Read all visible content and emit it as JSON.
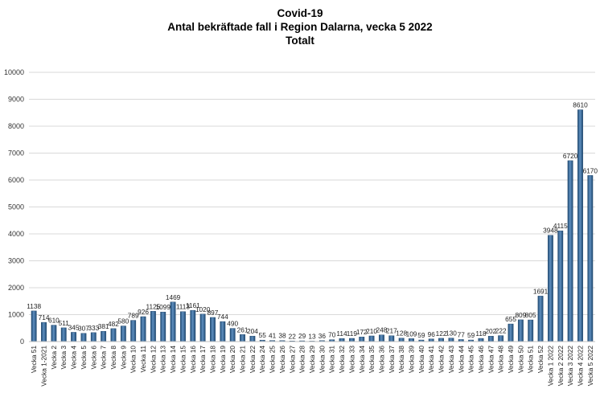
{
  "chart_data": {
    "type": "bar",
    "title": "Covid-19",
    "subtitle": "Antal bekräftade fall i Region Dalarna, vecka 5 2022",
    "subtitle2": "Totalt",
    "xlabel": "",
    "ylabel": "",
    "ylim": [
      0,
      10000
    ],
    "yticks": [
      0,
      1000,
      2000,
      3000,
      4000,
      5000,
      6000,
      7000,
      8000,
      9000,
      10000
    ],
    "grid": true,
    "legend": "none",
    "bar_color": "#2e5f8f",
    "bar_highlight": "#5f8fbf",
    "categories": [
      "Vecka 51",
      "Vecka 1-2021",
      "Vecka 2",
      "Vecka 3",
      "Vecka 4",
      "Vecka 5",
      "Vecka 6",
      "Vecka 7",
      "Vecka 8",
      "Vecka 9",
      "Vecka 10",
      "Vecka 11",
      "Vecka 12",
      "Vecka 13",
      "Vecka 14",
      "Vecka 15",
      "Vecka 16",
      "Vecka 17",
      "Vecka 18",
      "Vecka 19",
      "Vecka 20",
      "Vecka 21",
      "Vecka 22",
      "Vecka 24",
      "Vecka 25",
      "Vecka 26",
      "Vecka 27",
      "Vecka 28",
      "Vecka 29",
      "Vecka 30",
      "Vecka 31",
      "Vecka 32",
      "Vecka 33",
      "Vecka 34",
      "Vecka 35",
      "Vecka 36",
      "Vecka 37",
      "Vecka 38",
      "Vecka 39",
      "Vecka 40",
      "Vecka 41",
      "Vecka 42",
      "Vecka 43",
      "Vecka 44",
      "Vecka 45",
      "Vecka 46",
      "Vecka 47",
      "Vecka 48",
      "Vecka 49",
      "Vecka 50",
      "Vecka 51",
      "Vecka 52",
      "Vecka 1 2022",
      "Vecka 2 2022",
      "Vecka 3 2022",
      "Vecka 4 2022",
      "Vecka 5 2022"
    ],
    "values": [
      1138,
      714,
      610,
      511,
      345,
      307,
      333,
      381,
      482,
      580,
      789,
      926,
      1125,
      1099,
      1469,
      1113,
      1161,
      1020,
      897,
      744,
      490,
      261,
      204,
      55,
      41,
      38,
      22,
      29,
      13,
      36,
      70,
      114,
      119,
      172,
      210,
      248,
      217,
      128,
      109,
      59,
      96,
      122,
      130,
      77,
      59,
      118,
      202,
      222,
      655,
      809,
      805,
      1691,
      3948,
      4115,
      6720,
      8610,
      6170
    ],
    "labels": [
      "1138",
      "714",
      "610",
      "511",
      "345",
      "307",
      "333",
      "381",
      "482",
      "580",
      "789",
      "926",
      "1125",
      "1099",
      "1469",
      "1113",
      "1161",
      "1020",
      "897",
      "744",
      "490",
      "261",
      "204",
      "55",
      "41",
      "38",
      "22",
      "29",
      "13",
      "36",
      "70",
      "114",
      "119",
      "172",
      "210",
      "248",
      "217",
      "128",
      "109",
      "59",
      "96",
      "122",
      "130",
      "77",
      "59",
      "118",
      "202",
      "222",
      "655",
      "809",
      "805",
      "1691",
      "3948",
      "4115",
      "6720",
      "8610",
      "6170"
    ]
  }
}
